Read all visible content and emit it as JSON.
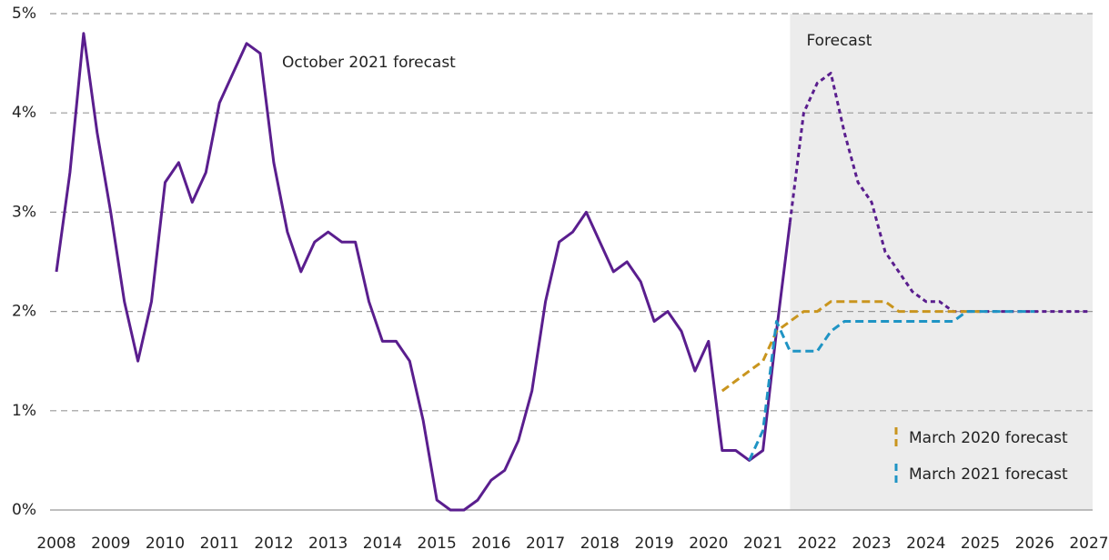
{
  "chart_data": {
    "type": "line",
    "x": [
      2008,
      2008.25,
      2008.5,
      2008.75,
      2009,
      2009.25,
      2009.5,
      2009.75,
      2010,
      2010.25,
      2010.5,
      2010.75,
      2011,
      2011.25,
      2011.5,
      2011.75,
      2012,
      2012.25,
      2012.5,
      2012.75,
      2013,
      2013.25,
      2013.5,
      2013.75,
      2014,
      2014.25,
      2014.5,
      2014.75,
      2015,
      2015.25,
      2015.5,
      2015.75,
      2016,
      2016.25,
      2016.5,
      2016.75,
      2017,
      2017.25,
      2017.5,
      2017.75,
      2018,
      2018.25,
      2018.5,
      2018.75,
      2019,
      2019.25,
      2019.5,
      2019.75,
      2020,
      2020.25,
      2020.5,
      2020.75,
      2021,
      2021.25,
      2021.5,
      2021.75,
      2022,
      2022.25,
      2022.5,
      2022.75,
      2023,
      2023.25,
      2023.5,
      2023.75,
      2024,
      2024.25,
      2024.5,
      2024.75,
      2025,
      2025.25,
      2025.5,
      2025.75,
      2026,
      2026.25,
      2026.5,
      2026.75,
      2027
    ],
    "series": [
      {
        "name": "October 2021 forecast",
        "color": "#5a1e8e",
        "values": [
          2.4,
          3.4,
          4.8,
          3.8,
          3.0,
          2.1,
          1.5,
          2.1,
          3.3,
          3.5,
          3.1,
          3.4,
          4.1,
          4.4,
          4.7,
          4.6,
          3.5,
          2.8,
          2.4,
          2.7,
          2.8,
          2.7,
          2.7,
          2.1,
          1.7,
          1.7,
          1.5,
          0.9,
          0.1,
          0.0,
          0.0,
          0.1,
          0.3,
          0.4,
          0.7,
          1.2,
          2.1,
          2.7,
          2.8,
          3.0,
          2.7,
          2.4,
          2.5,
          2.3,
          1.9,
          2.0,
          1.8,
          1.4,
          1.7,
          0.6,
          0.6,
          0.5,
          0.6,
          1.8,
          2.9,
          4.0,
          4.3,
          4.4,
          3.8,
          3.3,
          3.1,
          2.6,
          2.4,
          2.2,
          2.1,
          2.1,
          2.0,
          2.0,
          2.0,
          2.0,
          2.0,
          2.0,
          2.0,
          2.0,
          2.0,
          2.0,
          2.0
        ]
      },
      {
        "name": "March 2020 forecast",
        "color": "#c9951e",
        "values": [
          null,
          null,
          null,
          null,
          null,
          null,
          null,
          null,
          null,
          null,
          null,
          null,
          null,
          null,
          null,
          null,
          null,
          null,
          null,
          null,
          null,
          null,
          null,
          null,
          null,
          null,
          null,
          null,
          null,
          null,
          null,
          null,
          null,
          null,
          null,
          null,
          null,
          null,
          null,
          null,
          null,
          null,
          null,
          null,
          null,
          null,
          null,
          null,
          null,
          1.2,
          1.3,
          1.4,
          1.5,
          1.8,
          1.9,
          2.0,
          2.0,
          2.1,
          2.1,
          2.1,
          2.1,
          2.1,
          2.0,
          2.0,
          2.0,
          2.0,
          2.0,
          2.0,
          2.0,
          null,
          null,
          null,
          null,
          null,
          null,
          null,
          null
        ]
      },
      {
        "name": "March 2021 forecast",
        "color": "#1f94c4",
        "values": [
          null,
          null,
          null,
          null,
          null,
          null,
          null,
          null,
          null,
          null,
          null,
          null,
          null,
          null,
          null,
          null,
          null,
          null,
          null,
          null,
          null,
          null,
          null,
          null,
          null,
          null,
          null,
          null,
          null,
          null,
          null,
          null,
          null,
          null,
          null,
          null,
          null,
          null,
          null,
          null,
          null,
          null,
          null,
          null,
          null,
          null,
          null,
          null,
          null,
          null,
          null,
          0.5,
          0.8,
          1.9,
          1.6,
          1.6,
          1.6,
          1.8,
          1.9,
          1.9,
          1.9,
          1.9,
          1.9,
          1.9,
          1.9,
          1.9,
          1.9,
          2.0,
          2.0,
          2.0,
          2.0,
          2.0,
          2.0,
          null,
          null,
          null,
          null
        ]
      }
    ],
    "forecast_region": {
      "label": "Forecast",
      "start": 2021.5
    },
    "xlim": [
      2008,
      2027
    ],
    "xticks": [
      2008,
      2009,
      2010,
      2011,
      2012,
      2013,
      2014,
      2015,
      2016,
      2017,
      2018,
      2019,
      2020,
      2021,
      2022,
      2023,
      2024,
      2025,
      2026,
      2027
    ],
    "ylim": [
      0,
      5
    ],
    "yticks": [
      {
        "value": 0,
        "label": "0%"
      },
      {
        "value": 1,
        "label": "1%"
      },
      {
        "value": 2,
        "label": "2%"
      },
      {
        "value": 3,
        "label": "3%"
      },
      {
        "value": 4,
        "label": "4%"
      },
      {
        "value": 5,
        "label": "5%"
      }
    ],
    "grid": true,
    "legend": "lower right"
  }
}
